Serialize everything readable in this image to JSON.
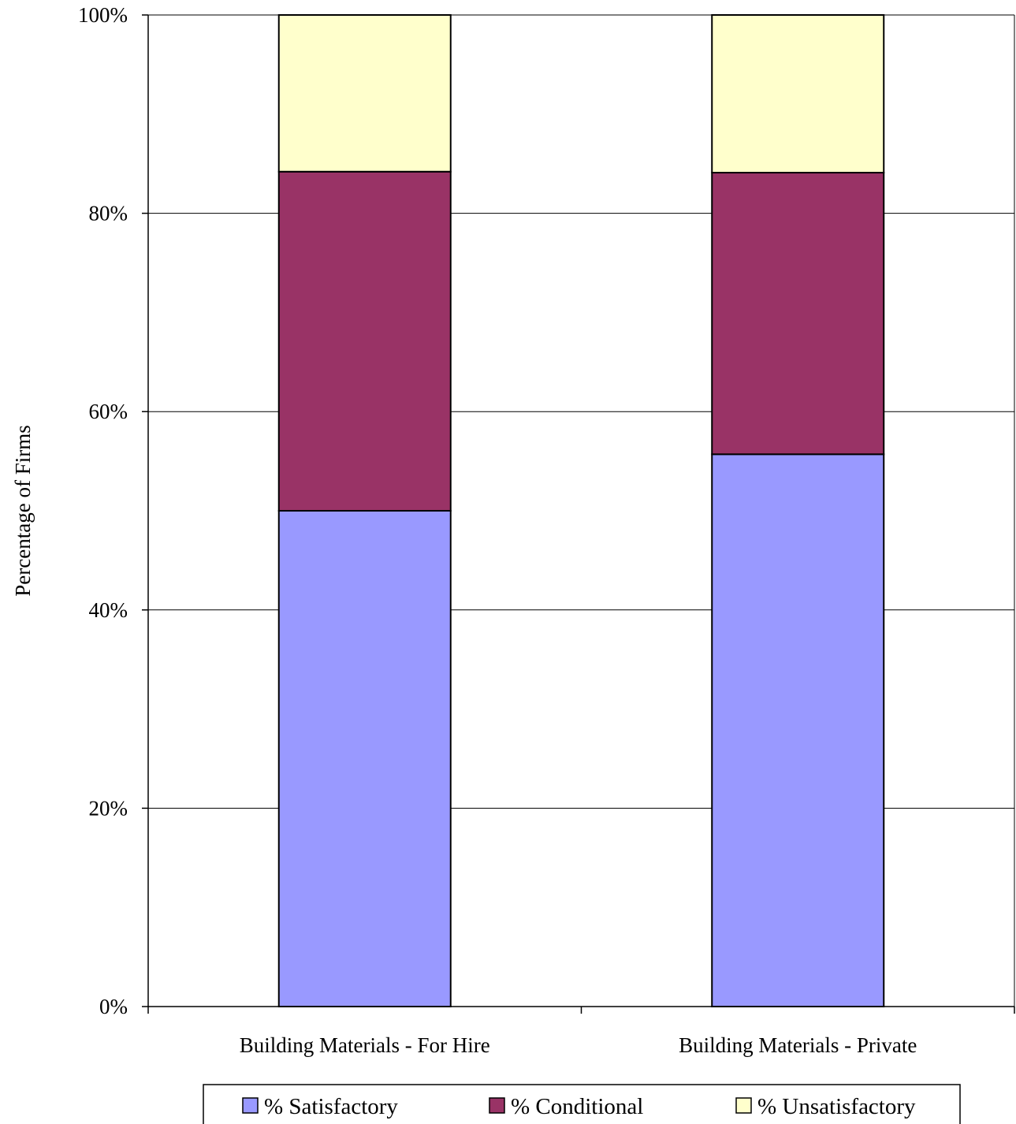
{
  "chart_data": {
    "type": "bar",
    "stacked": true,
    "categories": [
      "Building Materials - For Hire",
      "Building Materials - Private"
    ],
    "series": [
      {
        "name": "% Satisfactory",
        "values": [
          50.0,
          55.7
        ],
        "color": "#9999FF"
      },
      {
        "name": "% Conditional",
        "values": [
          34.2,
          28.4
        ],
        "color": "#993366"
      },
      {
        "name": "% Unsatisfactory",
        "values": [
          15.8,
          15.9
        ],
        "color": "#FFFFCC"
      }
    ],
    "ylabel": "Percentage of Firms",
    "xlabel": "",
    "ylim": [
      0,
      100
    ],
    "yticks": [
      "0%",
      "20%",
      "40%",
      "60%",
      "80%",
      "100%"
    ],
    "ytick_values": [
      0,
      20,
      40,
      60,
      80,
      100
    ],
    "grid": true,
    "legend_position": "bottom"
  }
}
